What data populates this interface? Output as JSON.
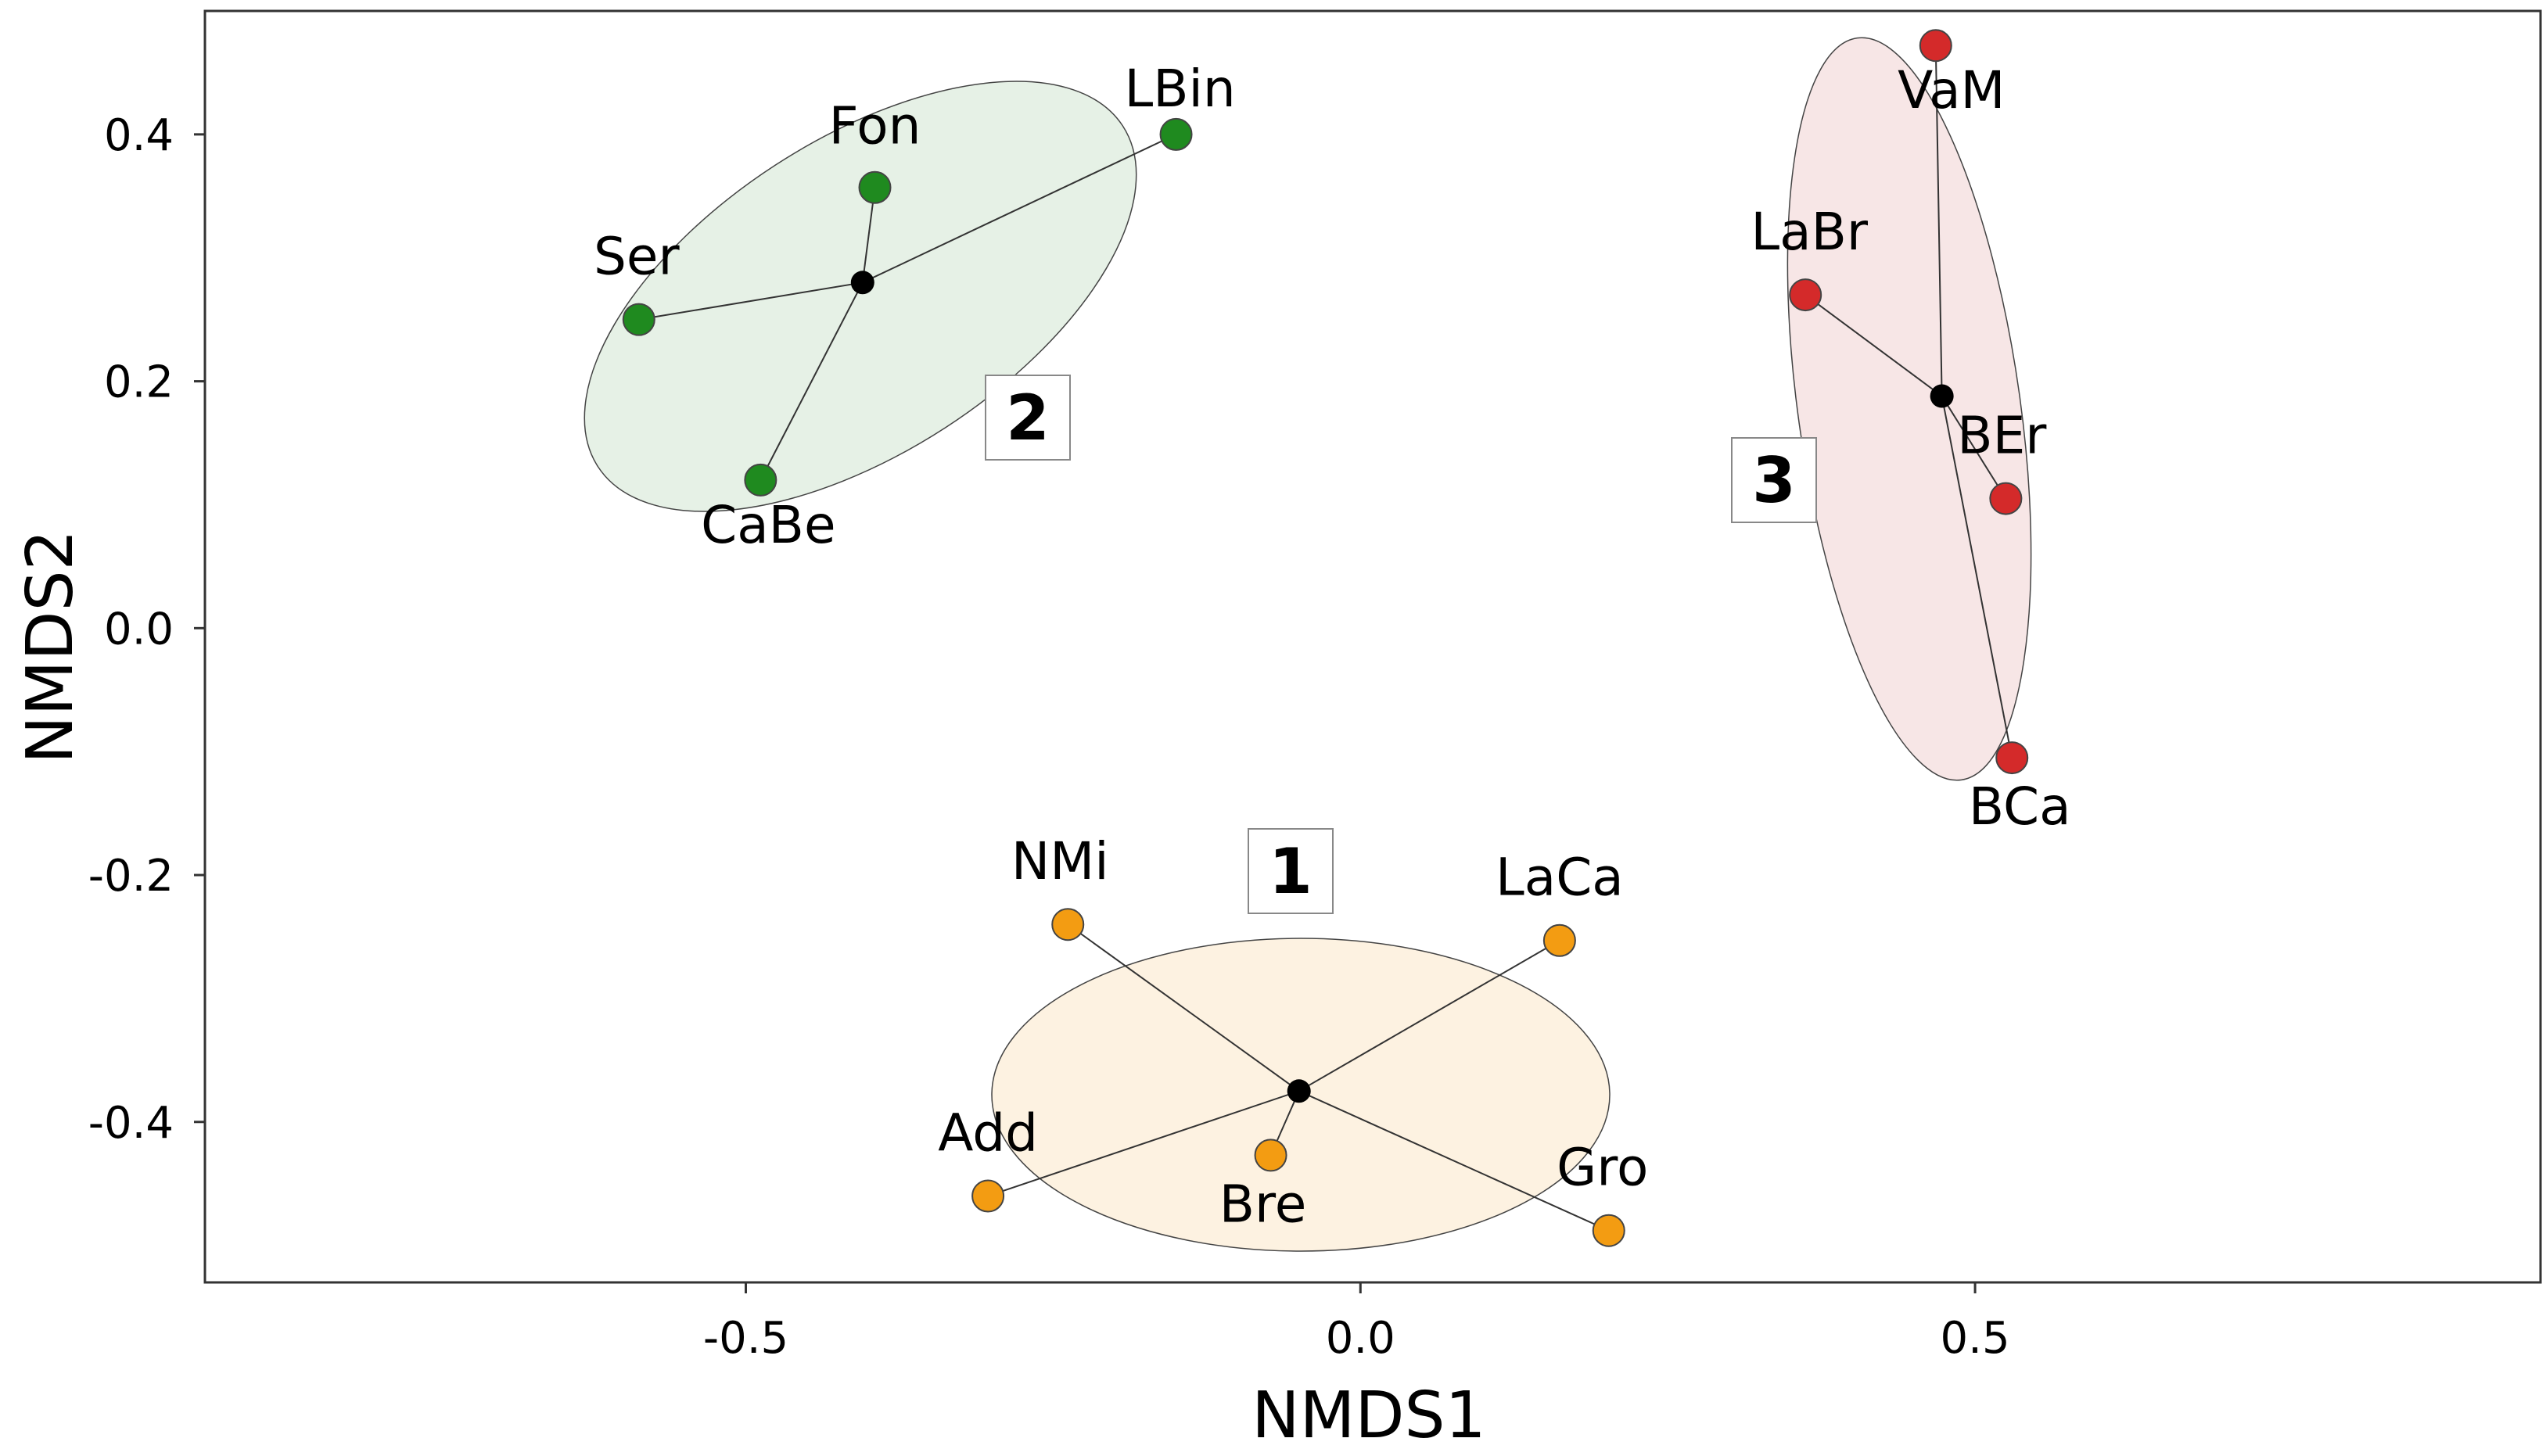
{
  "chart_data": {
    "type": "scatter",
    "title": "",
    "xlabel": "NMDS1",
    "ylabel": "NMDS2",
    "xlim": [
      -0.94,
      0.96
    ],
    "ylim": [
      -0.53,
      0.5
    ],
    "xticks": [
      -0.5,
      0.0,
      0.5
    ],
    "yticks": [
      -0.4,
      -0.2,
      0.0,
      0.2,
      0.4
    ],
    "xtick_labels": [
      "-0.5",
      "0.0",
      "0.5"
    ],
    "ytick_labels": [
      "-0.4",
      "-0.2",
      "0.0",
      "0.2",
      "0.4"
    ],
    "grid": false,
    "groups": [
      {
        "label": "1",
        "color": "#f39c12",
        "fill": "#fdf0dc",
        "centroid": [
          -0.05,
          -0.375
        ],
        "points": [
          {
            "name": "NMi",
            "x": -0.238,
            "y": -0.24
          },
          {
            "name": "LaCa",
            "x": 0.162,
            "y": -0.253
          },
          {
            "name": "Add",
            "x": -0.303,
            "y": -0.46
          },
          {
            "name": "Bre",
            "x": -0.073,
            "y": -0.427
          },
          {
            "name": "Gro",
            "x": 0.202,
            "y": -0.488
          }
        ]
      },
      {
        "label": "2",
        "color": "#1f8a1f",
        "fill": "#e2efe2",
        "centroid": [
          -0.405,
          0.28
        ],
        "points": [
          {
            "name": "LBin",
            "x": -0.15,
            "y": 0.4
          },
          {
            "name": "Fon",
            "x": -0.395,
            "y": 0.357
          },
          {
            "name": "Ser",
            "x": -0.587,
            "y": 0.25
          },
          {
            "name": "CaBe",
            "x": -0.488,
            "y": 0.12
          }
        ]
      },
      {
        "label": "3",
        "color": "#d42a2a",
        "fill": "#f6e2e2",
        "centroid": [
          0.473,
          0.188
        ],
        "points": [
          {
            "name": "VaM",
            "x": 0.468,
            "y": 0.472
          },
          {
            "name": "LaBr",
            "x": 0.362,
            "y": 0.27
          },
          {
            "name": "BEr",
            "x": 0.525,
            "y": 0.105
          },
          {
            "name": "BCa",
            "x": 0.53,
            "y": -0.105
          }
        ]
      }
    ]
  }
}
